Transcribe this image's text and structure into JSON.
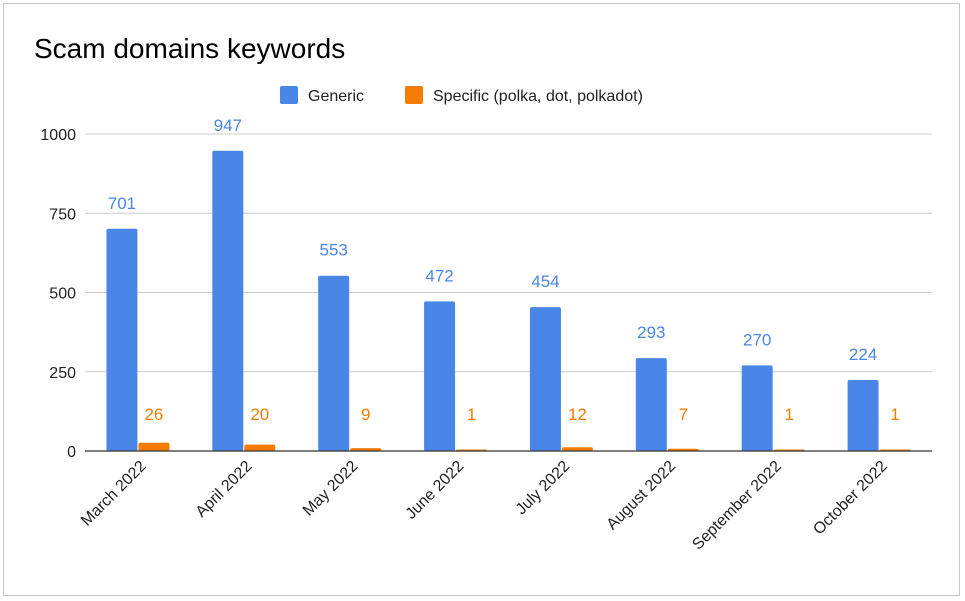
{
  "chart_data": {
    "type": "bar",
    "title": "Scam domains keywords",
    "categories": [
      "March 2022",
      "April 2022",
      "May 2022",
      "June 2022",
      "July 2022",
      "August 2022",
      "September 2022",
      "October 2022"
    ],
    "series": [
      {
        "name": "Generic",
        "color": "#4a86e8",
        "values": [
          701,
          947,
          553,
          472,
          454,
          293,
          270,
          224
        ],
        "labels": [
          "701",
          "947",
          "553",
          "472",
          "454",
          "293",
          "270",
          "224"
        ]
      },
      {
        "name": "Specific (polka, dot, polkadot)",
        "color": "#f57c00",
        "values": [
          26,
          20,
          9,
          1,
          12,
          7,
          1,
          1
        ],
        "labels": [
          "26",
          "20",
          "9",
          "1",
          "12",
          "7",
          "1",
          "1"
        ]
      }
    ],
    "yticks": [
      {
        "value": 0,
        "label": "0"
      },
      {
        "value": 250,
        "label": "250"
      },
      {
        "value": 500,
        "label": "500"
      },
      {
        "value": 750,
        "label": "750"
      },
      {
        "value": 1000,
        "label": "1000"
      }
    ],
    "ylim": [
      0,
      1000
    ],
    "grid": true,
    "legend_position": "top-center",
    "data_labels": true
  }
}
